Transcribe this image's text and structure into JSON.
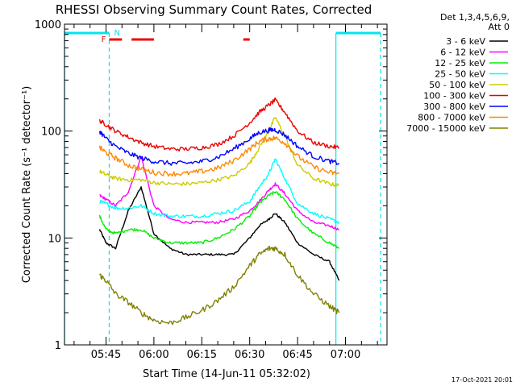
{
  "chart_data": {
    "type": "line",
    "title": "RHESSI Observing Summary Count Rates, Corrected",
    "xlabel": "Start Time (14-Jun-11 05:32:02)",
    "ylabel": "Corrected Count Rate (s⁻¹ detector⁻¹)",
    "y_scale": "log",
    "ylim": [
      1,
      1000
    ],
    "xlim": [
      "05:32",
      "07:13"
    ],
    "x_ticks": [
      "05:45",
      "06:00",
      "06:15",
      "06:30",
      "06:45",
      "07:00"
    ],
    "y_ticks": [
      "1",
      "10",
      "100",
      "1000"
    ],
    "detector_info": [
      "Det 1,3,4,5,6,9,",
      "Att 0"
    ],
    "footer_date": "17-Oct-2021 20:01",
    "flag_labels": {
      "flare": "F",
      "night": "N"
    },
    "night_intervals": [
      {
        "start": "05:32",
        "end": "05:46"
      },
      {
        "start": "06:57",
        "end": "07:11"
      }
    ],
    "flare_intervals": [
      {
        "start": "05:46",
        "end": "05:50"
      },
      {
        "start": "05:53",
        "end": "06:00"
      },
      {
        "start": "06:28",
        "end": "06:30"
      }
    ],
    "x": [
      "05:43",
      "05:45",
      "05:48",
      "05:52",
      "05:56",
      "06:00",
      "06:05",
      "06:10",
      "06:15",
      "06:20",
      "06:25",
      "06:30",
      "06:33",
      "06:36",
      "06:38",
      "06:41",
      "06:45",
      "06:50",
      "06:55",
      "06:58"
    ],
    "series": [
      {
        "name": "3 - 6 keV",
        "color": "#000000",
        "values": [
          12,
          9,
          8,
          18,
          30,
          11,
          8,
          7,
          7,
          7,
          7,
          10,
          13,
          15,
          17,
          14,
          9,
          7,
          6,
          4
        ]
      },
      {
        "name": "6 - 12 keV",
        "color": "#ff00ff",
        "values": [
          25,
          23,
          20,
          27,
          58,
          20,
          15,
          14,
          14,
          14,
          15,
          18,
          22,
          28,
          32,
          26,
          18,
          14,
          13,
          12
        ]
      },
      {
        "name": "12 - 25 keV",
        "color": "#00ee00",
        "values": [
          16,
          12,
          11,
          12,
          12,
          10,
          9,
          9,
          9,
          10,
          12,
          16,
          21,
          25,
          27,
          23,
          15,
          11,
          9,
          8
        ]
      },
      {
        "name": "25 - 50 keV",
        "color": "#00ffff",
        "values": [
          22,
          21,
          19,
          19,
          20,
          17,
          16,
          16,
          16,
          17,
          18,
          22,
          30,
          40,
          55,
          36,
          21,
          17,
          15,
          14
        ]
      },
      {
        "name": "50 - 100 keV",
        "color": "#cccc00",
        "values": [
          42,
          39,
          36,
          35,
          35,
          33,
          32,
          32,
          33,
          35,
          38,
          50,
          70,
          100,
          135,
          90,
          48,
          36,
          32,
          31
        ]
      },
      {
        "name": "100 - 300 keV",
        "color": "#ee0000",
        "values": [
          125,
          115,
          100,
          88,
          78,
          72,
          68,
          68,
          70,
          75,
          90,
          120,
          150,
          175,
          195,
          150,
          100,
          78,
          72,
          70
        ]
      },
      {
        "name": "300 - 800 keV",
        "color": "#0000ff",
        "values": [
          100,
          85,
          72,
          62,
          56,
          52,
          50,
          50,
          52,
          57,
          68,
          85,
          97,
          102,
          103,
          92,
          72,
          58,
          52,
          50
        ]
      },
      {
        "name": "800 - 7000 keV",
        "color": "#ff8800",
        "values": [
          70,
          63,
          56,
          48,
          44,
          41,
          40,
          40,
          42,
          45,
          53,
          68,
          80,
          85,
          86,
          78,
          58,
          46,
          41,
          40
        ]
      },
      {
        "name": "7000 - 15000 keV",
        "color": "#808000",
        "values": [
          4.5,
          4,
          3,
          2.5,
          2,
          1.7,
          1.6,
          1.8,
          2.1,
          2.6,
          3.5,
          5.5,
          7,
          8,
          8,
          7,
          4.5,
          3,
          2.3,
          2
        ]
      }
    ]
  }
}
